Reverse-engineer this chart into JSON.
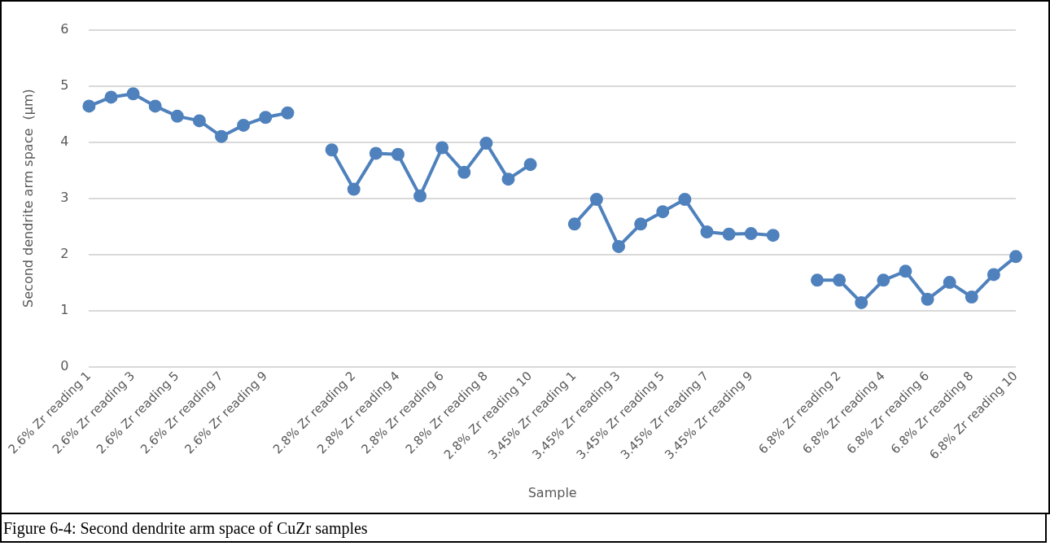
{
  "chart_data": {
    "type": "line",
    "xlabel": "Sample",
    "ylabel": "Second dendrite arm space  (µm)",
    "categories": [
      "2.6% Zr reading 1",
      null,
      "2.6% Zr reading 3",
      null,
      "2.6% Zr reading 5",
      null,
      "2.6% Zr reading 7",
      null,
      "2.6% Zr reading 9",
      null,
      null,
      null,
      "2.8% Zr reading 2",
      null,
      "2.8% Zr reading 4",
      null,
      "2.8% Zr reading 6",
      null,
      "2.8% Zr reading 8",
      null,
      "2.8% Zr reading 10",
      null,
      "3.45% Zr reading 1",
      null,
      "3.45% Zr reading 3",
      null,
      "3.45% Zr reading 5",
      null,
      "3.45% Zr reading 7",
      null,
      "3.45% Zr reading 9",
      null,
      null,
      null,
      "6.8% Zr reading 2",
      null,
      "6.8% Zr reading 4",
      null,
      "6.8% Zr reading 6",
      null,
      "6.8% Zr reading 8",
      null,
      "6.8% Zr reading 10"
    ],
    "series": [
      {
        "color": "#4f81bd",
        "values": [
          4.64,
          4.8,
          4.86,
          4.64,
          4.46,
          4.38,
          4.1,
          4.3,
          4.44,
          4.52,
          null,
          3.86,
          3.16,
          3.8,
          3.78,
          3.04,
          3.9,
          3.46,
          3.98,
          3.34,
          3.6,
          null,
          2.54,
          2.98,
          2.14,
          2.54,
          2.76,
          2.98,
          2.4,
          2.36,
          2.37,
          2.34,
          null,
          1.54,
          1.54,
          1.14,
          1.54,
          1.7,
          1.2,
          1.5,
          1.24,
          1.64,
          1.96
        ]
      }
    ],
    "ylim": [
      0,
      6
    ],
    "yticks": [
      0,
      1,
      2,
      3,
      4,
      5,
      6
    ],
    "grid": "y",
    "marker": "circle",
    "line_style": "solid",
    "annotations": [
      "Figure 6-4: Second dendrite arm space of CuZr samples"
    ]
  }
}
